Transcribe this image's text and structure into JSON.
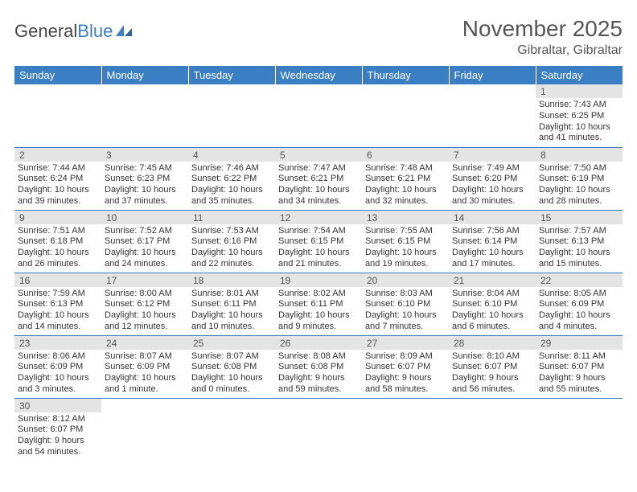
{
  "logo": {
    "text1": "General",
    "text2": "Blue"
  },
  "title": "November 2025",
  "location": "Gibraltar, Gibraltar",
  "dayHeaders": [
    "Sunday",
    "Monday",
    "Tuesday",
    "Wednesday",
    "Thursday",
    "Friday",
    "Saturday"
  ],
  "colors": {
    "headerBg": "#3a7fc4",
    "headerFg": "#ffffff",
    "dayNumBg": "#e4e4e4",
    "borderColor": "#3a7fc4",
    "textColor": "#333333",
    "titleColor": "#555555"
  },
  "startWeekday": 6,
  "daysInMonth": 30,
  "days": {
    "1": {
      "sunrise": "7:43 AM",
      "sunset": "6:25 PM",
      "daylight": "10 hours and 41 minutes."
    },
    "2": {
      "sunrise": "7:44 AM",
      "sunset": "6:24 PM",
      "daylight": "10 hours and 39 minutes."
    },
    "3": {
      "sunrise": "7:45 AM",
      "sunset": "6:23 PM",
      "daylight": "10 hours and 37 minutes."
    },
    "4": {
      "sunrise": "7:46 AM",
      "sunset": "6:22 PM",
      "daylight": "10 hours and 35 minutes."
    },
    "5": {
      "sunrise": "7:47 AM",
      "sunset": "6:21 PM",
      "daylight": "10 hours and 34 minutes."
    },
    "6": {
      "sunrise": "7:48 AM",
      "sunset": "6:21 PM",
      "daylight": "10 hours and 32 minutes."
    },
    "7": {
      "sunrise": "7:49 AM",
      "sunset": "6:20 PM",
      "daylight": "10 hours and 30 minutes."
    },
    "8": {
      "sunrise": "7:50 AM",
      "sunset": "6:19 PM",
      "daylight": "10 hours and 28 minutes."
    },
    "9": {
      "sunrise": "7:51 AM",
      "sunset": "6:18 PM",
      "daylight": "10 hours and 26 minutes."
    },
    "10": {
      "sunrise": "7:52 AM",
      "sunset": "6:17 PM",
      "daylight": "10 hours and 24 minutes."
    },
    "11": {
      "sunrise": "7:53 AM",
      "sunset": "6:16 PM",
      "daylight": "10 hours and 22 minutes."
    },
    "12": {
      "sunrise": "7:54 AM",
      "sunset": "6:15 PM",
      "daylight": "10 hours and 21 minutes."
    },
    "13": {
      "sunrise": "7:55 AM",
      "sunset": "6:15 PM",
      "daylight": "10 hours and 19 minutes."
    },
    "14": {
      "sunrise": "7:56 AM",
      "sunset": "6:14 PM",
      "daylight": "10 hours and 17 minutes."
    },
    "15": {
      "sunrise": "7:57 AM",
      "sunset": "6:13 PM",
      "daylight": "10 hours and 15 minutes."
    },
    "16": {
      "sunrise": "7:59 AM",
      "sunset": "6:13 PM",
      "daylight": "10 hours and 14 minutes."
    },
    "17": {
      "sunrise": "8:00 AM",
      "sunset": "6:12 PM",
      "daylight": "10 hours and 12 minutes."
    },
    "18": {
      "sunrise": "8:01 AM",
      "sunset": "6:11 PM",
      "daylight": "10 hours and 10 minutes."
    },
    "19": {
      "sunrise": "8:02 AM",
      "sunset": "6:11 PM",
      "daylight": "10 hours and 9 minutes."
    },
    "20": {
      "sunrise": "8:03 AM",
      "sunset": "6:10 PM",
      "daylight": "10 hours and 7 minutes."
    },
    "21": {
      "sunrise": "8:04 AM",
      "sunset": "6:10 PM",
      "daylight": "10 hours and 6 minutes."
    },
    "22": {
      "sunrise": "8:05 AM",
      "sunset": "6:09 PM",
      "daylight": "10 hours and 4 minutes."
    },
    "23": {
      "sunrise": "8:06 AM",
      "sunset": "6:09 PM",
      "daylight": "10 hours and 3 minutes."
    },
    "24": {
      "sunrise": "8:07 AM",
      "sunset": "6:09 PM",
      "daylight": "10 hours and 1 minute."
    },
    "25": {
      "sunrise": "8:07 AM",
      "sunset": "6:08 PM",
      "daylight": "10 hours and 0 minutes."
    },
    "26": {
      "sunrise": "8:08 AM",
      "sunset": "6:08 PM",
      "daylight": "9 hours and 59 minutes."
    },
    "27": {
      "sunrise": "8:09 AM",
      "sunset": "6:07 PM",
      "daylight": "9 hours and 58 minutes."
    },
    "28": {
      "sunrise": "8:10 AM",
      "sunset": "6:07 PM",
      "daylight": "9 hours and 56 minutes."
    },
    "29": {
      "sunrise": "8:11 AM",
      "sunset": "6:07 PM",
      "daylight": "9 hours and 55 minutes."
    },
    "30": {
      "sunrise": "8:12 AM",
      "sunset": "6:07 PM",
      "daylight": "9 hours and 54 minutes."
    }
  },
  "labels": {
    "sunrise": "Sunrise:",
    "sunset": "Sunset:",
    "daylight": "Daylight:"
  }
}
